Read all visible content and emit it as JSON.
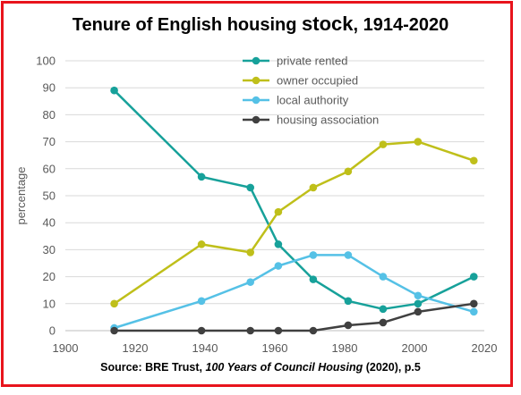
{
  "title": {
    "part1": "Tenure of English housing ",
    "part2": "stock",
    "part3": ", 1914-2020"
  },
  "source": {
    "prefix": "Source: BRE Trust, ",
    "book": "100 Years of Council Housing",
    "suffix": " (2020), p.5"
  },
  "colors": {
    "frame": "#e8141c",
    "grid": "#d9d9d9",
    "axis": "#bfbfbf",
    "tick_text": "#595959"
  },
  "chart_data": {
    "type": "line",
    "ylabel": "percentage",
    "xlabel": "",
    "xlim": [
      1900,
      2020
    ],
    "ylim": [
      0,
      100
    ],
    "x_ticks": [
      1900,
      1920,
      1940,
      1960,
      1980,
      2000,
      2020
    ],
    "y_ticks": [
      0,
      10,
      20,
      30,
      40,
      50,
      60,
      70,
      80,
      90,
      100
    ],
    "grid": "horizontal",
    "legend_position": "top-right",
    "x": [
      1914,
      1939,
      1953,
      1961,
      1971,
      1981,
      1991,
      2001,
      2017
    ],
    "series": [
      {
        "name": "private rented",
        "color": "#17a19a",
        "values": [
          89,
          57,
          53,
          32,
          19,
          11,
          8,
          10,
          20
        ]
      },
      {
        "name": "owner occupied",
        "color": "#bfbf1a",
        "values": [
          10,
          32,
          29,
          44,
          53,
          59,
          69,
          70,
          63
        ]
      },
      {
        "name": "local authority",
        "color": "#55c1e6",
        "values": [
          1,
          11,
          18,
          24,
          28,
          28,
          20,
          13,
          7
        ]
      },
      {
        "name": "housing association",
        "color": "#404040",
        "values": [
          0,
          0,
          0,
          0,
          0,
          2,
          3,
          7,
          10
        ]
      }
    ]
  }
}
